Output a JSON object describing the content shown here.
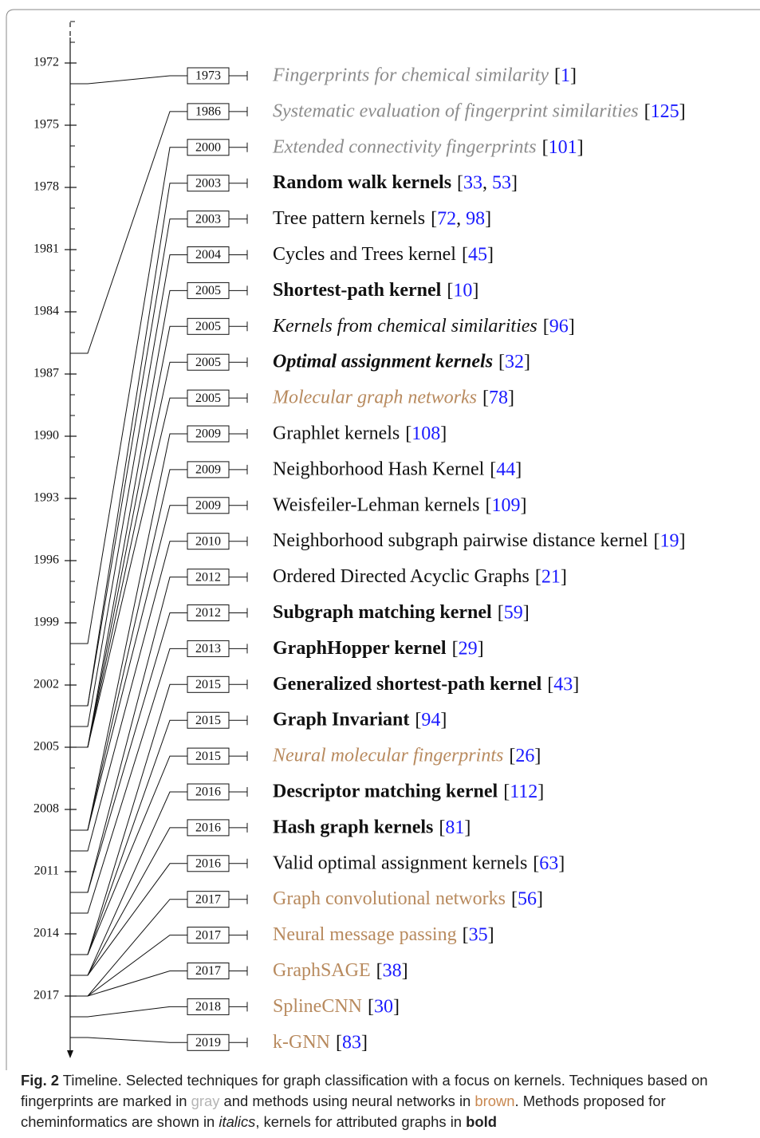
{
  "axis": {
    "ylim": [
      1970,
      2020
    ],
    "yticks": [
      1972,
      1975,
      1978,
      1981,
      1984,
      1987,
      1990,
      1993,
      1996,
      1999,
      2002,
      2005,
      2008,
      2011,
      2014,
      2017
    ],
    "minor_tick_step": 1
  },
  "ref_color": "#1a1aff",
  "items": [
    {
      "year": 1973,
      "name": "Fingerprints for chemical similarity",
      "refs": "[1]",
      "color": "#8c8c8c",
      "italic": true,
      "bold": false
    },
    {
      "year": 1986,
      "name": "Systematic evaluation of fingerprint similarities",
      "refs": "[125]",
      "color": "#8c8c8c",
      "italic": true,
      "bold": false
    },
    {
      "year": 2000,
      "name": "Extended connectivity fingerprints",
      "refs": "[101]",
      "color": "#8c8c8c",
      "italic": true,
      "bold": false
    },
    {
      "year": 2003,
      "name": "Random walk kernels",
      "refs": "[33, 53]",
      "color": "#111111",
      "italic": false,
      "bold": true
    },
    {
      "year": 2003,
      "name": "Tree pattern kernels",
      "refs": "[72, 98]",
      "color": "#111111",
      "italic": false,
      "bold": false
    },
    {
      "year": 2004,
      "name": "Cycles and Trees kernel",
      "refs": "[45]",
      "color": "#111111",
      "italic": false,
      "bold": false
    },
    {
      "year": 2005,
      "name": "Shortest-path kernel",
      "refs": "[10]",
      "color": "#111111",
      "italic": false,
      "bold": true
    },
    {
      "year": 2005,
      "name": "Kernels from chemical similarities",
      "refs": "[96]",
      "color": "#111111",
      "italic": true,
      "bold": false
    },
    {
      "year": 2005,
      "name": "Optimal assignment kernels",
      "refs": "[32]",
      "color": "#111111",
      "italic": true,
      "bold": true
    },
    {
      "year": 2005,
      "name": "Molecular graph networks",
      "refs": "[78]",
      "color": "#b88a5e",
      "italic": true,
      "bold": false
    },
    {
      "year": 2009,
      "name": "Graphlet kernels",
      "refs": "[108]",
      "color": "#111111",
      "italic": false,
      "bold": false
    },
    {
      "year": 2009,
      "name": "Neighborhood Hash Kernel",
      "refs": "[44]",
      "color": "#111111",
      "italic": false,
      "bold": false
    },
    {
      "year": 2009,
      "name": "Weisfeiler-Lehman kernels",
      "refs": "[109]",
      "color": "#111111",
      "italic": false,
      "bold": false
    },
    {
      "year": 2010,
      "name": "Neighborhood subgraph pairwise distance kernel",
      "refs": "[19]",
      "color": "#111111",
      "italic": false,
      "bold": false
    },
    {
      "year": 2012,
      "name": "Ordered Directed Acyclic Graphs",
      "refs": "[21]",
      "color": "#111111",
      "italic": false,
      "bold": false
    },
    {
      "year": 2012,
      "name": "Subgraph matching kernel",
      "refs": "[59]",
      "color": "#111111",
      "italic": false,
      "bold": true
    },
    {
      "year": 2013,
      "name": "GraphHopper kernel",
      "refs": "[29]",
      "color": "#111111",
      "italic": false,
      "bold": true
    },
    {
      "year": 2015,
      "name": "Generalized shortest-path kernel",
      "refs": "[43]",
      "color": "#111111",
      "italic": false,
      "bold": true
    },
    {
      "year": 2015,
      "name": "Graph Invariant",
      "refs": "[94]",
      "color": "#111111",
      "italic": false,
      "bold": true
    },
    {
      "year": 2015,
      "name": "Neural molecular fingerprints",
      "refs": "[26]",
      "color": "#b88a5e",
      "italic": true,
      "bold": false
    },
    {
      "year": 2016,
      "name": "Descriptor matching kernel",
      "refs": "[112]",
      "color": "#111111",
      "italic": false,
      "bold": true
    },
    {
      "year": 2016,
      "name": "Hash graph kernels",
      "refs": "[81]",
      "color": "#111111",
      "italic": false,
      "bold": true
    },
    {
      "year": 2016,
      "name": "Valid optimal assignment kernels",
      "refs": "[63]",
      "color": "#111111",
      "italic": false,
      "bold": false
    },
    {
      "year": 2017,
      "name": "Graph convolutional networks",
      "refs": "[56]",
      "color": "#b88a5e",
      "italic": false,
      "bold": false
    },
    {
      "year": 2017,
      "name": "Neural message passing",
      "refs": "[35]",
      "color": "#b88a5e",
      "italic": false,
      "bold": false
    },
    {
      "year": 2017,
      "name": "GraphSAGE",
      "refs": "[38]",
      "color": "#b88a5e",
      "italic": false,
      "bold": false
    },
    {
      "year": 2018,
      "name": "SplineCNN",
      "refs": "[30]",
      "color": "#b88a5e",
      "italic": false,
      "bold": false
    },
    {
      "year": 2019,
      "name": "k-GNN",
      "refs": "[83]",
      "color": "#b88a5e",
      "italic": false,
      "bold": false
    }
  ],
  "caption": [
    {
      "text": "Fig. 2",
      "style": "label"
    },
    {
      "text": "  Timeline. Selected techniques for graph classification with a focus on kernels. Techniques based on fingerprints are marked in ",
      "style": "plain"
    },
    {
      "text": "gray",
      "style": "gray"
    },
    {
      "text": " and methods using neural networks in ",
      "style": "plain"
    },
    {
      "text": "brown",
      "style": "brown"
    },
    {
      "text": ". Methods proposed for cheminformatics are shown in ",
      "style": "plain"
    },
    {
      "text": "italics",
      "style": "italic"
    },
    {
      "text": ", kernels for attributed graphs in ",
      "style": "plain"
    },
    {
      "text": "bold",
      "style": "bold"
    }
  ]
}
